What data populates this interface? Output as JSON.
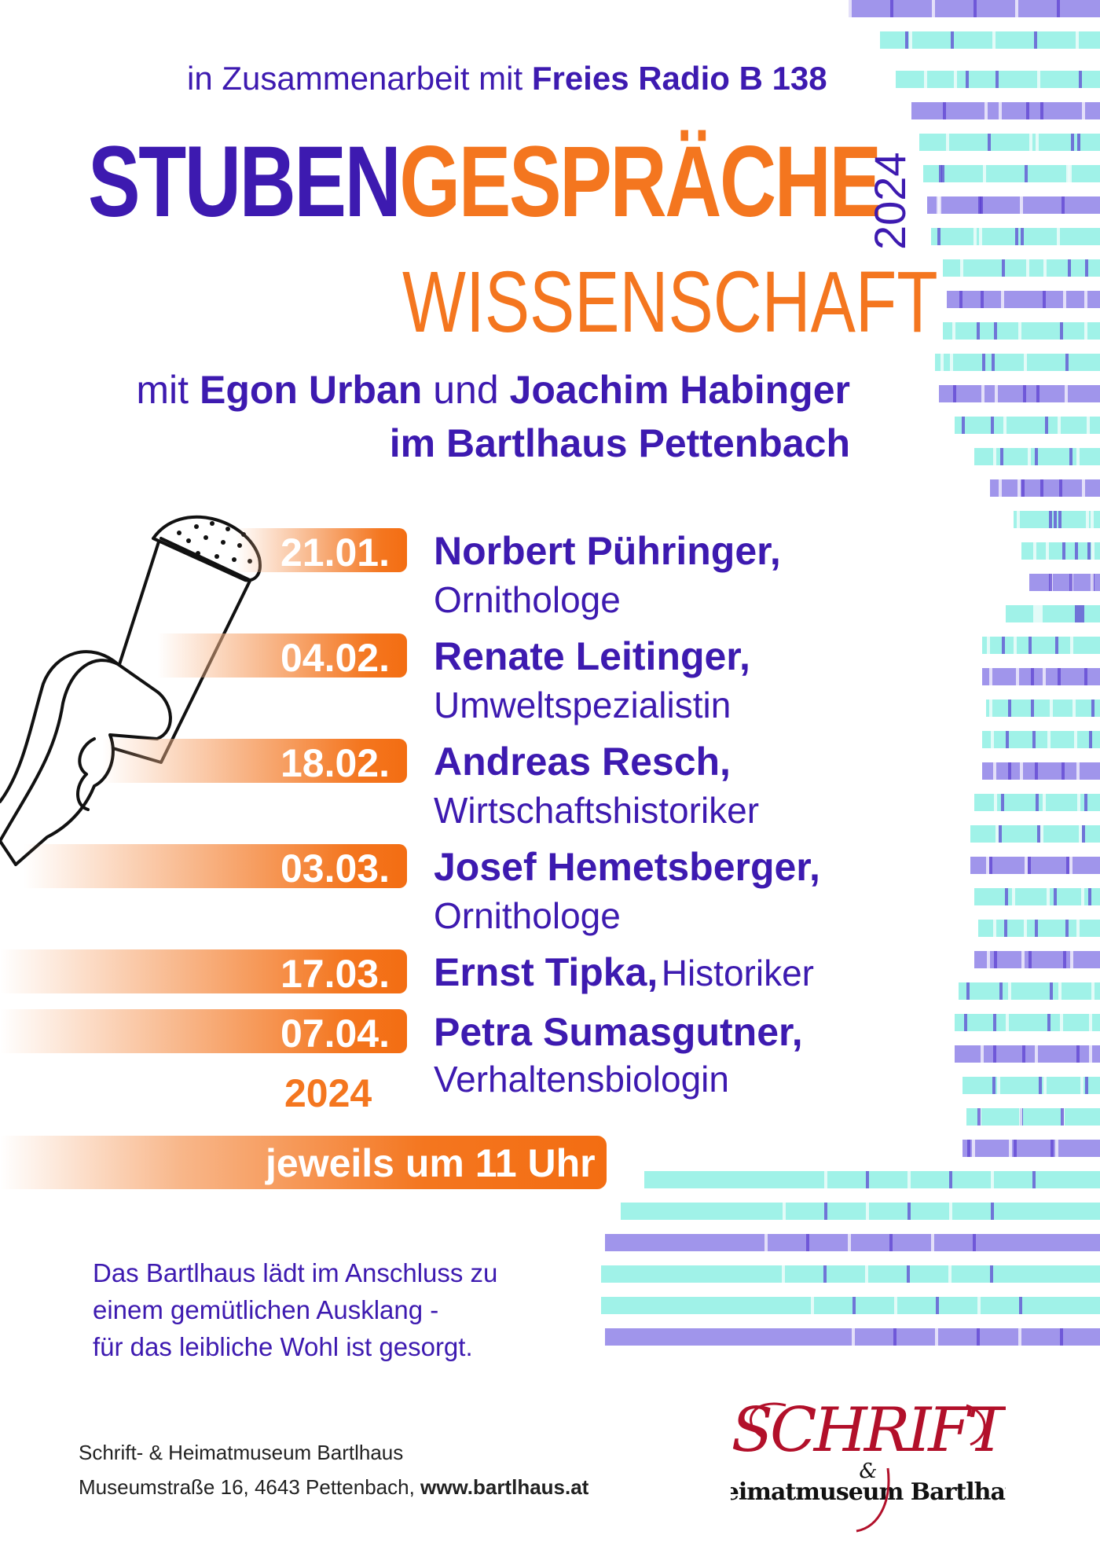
{
  "header": {
    "prefix": "in Zusammenarbeit mit",
    "partner": "Freies Radio B 138"
  },
  "title": {
    "part1": "STUBEN",
    "part2": "GESPRÄCHE",
    "year": "2024",
    "subtitle": "WISSENSCHAFT"
  },
  "hosts": {
    "mit": "mit",
    "host1": "Egon Urban",
    "und": "und",
    "host2": "Joachim Habinger",
    "venue": "im Bartlhaus Pettenbach"
  },
  "events": [
    {
      "date": "21.01.",
      "name": "Norbert Pühringer,",
      "role": "Ornithologe"
    },
    {
      "date": "04.02.",
      "name": "Renate Leitinger,",
      "role": "Umweltspezialistin"
    },
    {
      "date": "18.02.",
      "name": "Andreas Resch,",
      "role": "Wirtschaftshistoriker"
    },
    {
      "date": "03.03.",
      "name": "Josef Hemetsberger,",
      "role": "Ornithologe"
    },
    {
      "date": "17.03.",
      "name": "Ernst Tipka,",
      "role": "Historiker"
    },
    {
      "date": "07.04.",
      "name": "Petra Sumasgutner,",
      "role": "Verhaltensbiologin"
    }
  ],
  "events_year": "2024",
  "time": "jeweils um 11 Uhr",
  "note": {
    "line1": "Das Bartlhaus lädt im Anschluss zu",
    "line2": "einem gemütlichen Ausklang -",
    "line3": "für das leibliche Wohl ist gesorgt."
  },
  "address": {
    "line1": "Schrift- & Heimatmuseum Bartlhaus",
    "line2": "Museumstraße 16, 4643 Pettenbach,",
    "website": "www.bartlhaus.at"
  },
  "logo": {
    "top": "SCHRIFT",
    "amp": "&",
    "bottom": "Heimatmuseum Bartlhaus"
  },
  "colors": {
    "purple": "#3d1ab0",
    "orange": "#f4761f",
    "stripe_teal": "#8ff0e4",
    "stripe_violet": "#8f83e8"
  }
}
